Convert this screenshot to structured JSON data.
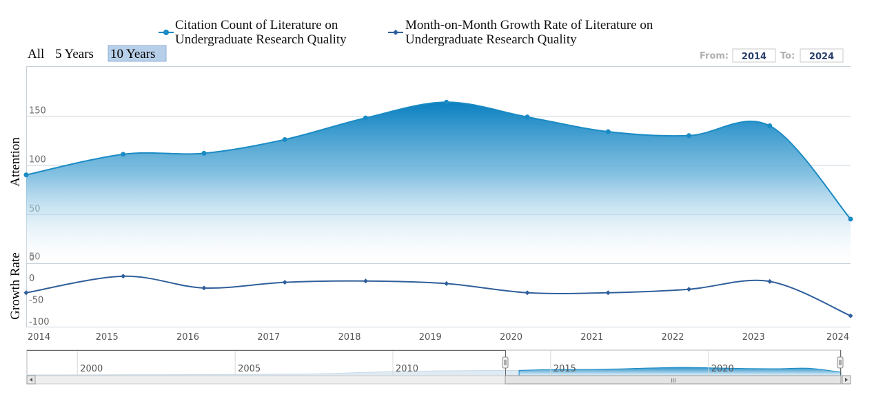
{
  "legend": {
    "series1": {
      "line1": "Citation Count of Literature on",
      "line2": "Undergraduate Research Quality"
    },
    "series2": {
      "line1": "Month-on-Month Growth Rate of Literature on",
      "line2": "Undergraduate Research Quality"
    }
  },
  "range_selector": {
    "buttons": [
      "All",
      "5 Years",
      "10 Years"
    ],
    "active": "10 Years"
  },
  "date_inputs": {
    "from_label": "From:",
    "from_value": "2014",
    "to_label": "To:",
    "to_value": "2024"
  },
  "navigator": {
    "ticks": [
      "2000",
      "2005",
      "2010",
      "2015",
      "2020"
    ],
    "scrollbar_grip": "III"
  },
  "colors": {
    "series1": "#1a8bc4",
    "series2": "#2f5f9a",
    "accent_button": "#b8cfe9"
  },
  "chart_data": {
    "type": "area",
    "x": [
      2014,
      2015.2,
      2016.2,
      2017.2,
      2018.2,
      2019.2,
      2020.2,
      2021.2,
      2022.2,
      2023.2,
      2024.2
    ],
    "x_ticks": [
      "2014",
      "2015",
      "2016",
      "2017",
      "2018",
      "2019",
      "2020",
      "2021",
      "2022",
      "2023",
      "2024"
    ],
    "panels": [
      {
        "ylabel": "Attention",
        "y_ticks": [
          "150",
          "100",
          "50",
          "0"
        ],
        "ylim": [
          0,
          200
        ],
        "series": [
          {
            "name": "Citation Count of Literature on Undergraduate Research Quality",
            "type": "area",
            "values": [
              90,
              111,
              112,
              126,
              148,
              164,
              149,
              134,
              130,
              140,
              45
            ]
          }
        ]
      },
      {
        "ylabel": "Growth Rate",
        "y_ticks": [
          "50",
          "0",
          "-50",
          "-100"
        ],
        "ylim": [
          -100,
          60
        ],
        "series": [
          {
            "name": "Month-on-Month Growth Rate of Literature on Undergraduate Research Quality",
            "type": "line",
            "values": [
              -22,
              16,
              -11,
              2,
              5,
              -1,
              -22,
              -22,
              -14,
              4,
              -75
            ]
          }
        ]
      }
    ],
    "grid": true,
    "legend_position": "top"
  }
}
